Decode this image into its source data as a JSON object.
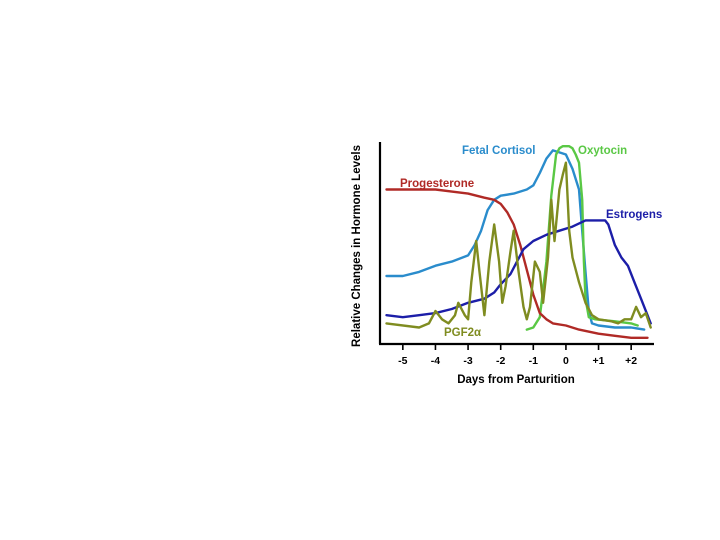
{
  "chart_data": {
    "type": "line",
    "title": "",
    "xlabel": "Days from Parturition",
    "ylabel": "Relative Changes in Hormone Levels",
    "xlim": [
      -5.7,
      2.7
    ],
    "ylim": [
      0,
      100
    ],
    "x_ticks": [
      {
        "value": -5,
        "label": "-5"
      },
      {
        "value": -4,
        "label": "-4"
      },
      {
        "value": -3,
        "label": "-3"
      },
      {
        "value": -2,
        "label": "-2"
      },
      {
        "value": -1,
        "label": "-1"
      },
      {
        "value": 0,
        "label": "0"
      },
      {
        "value": 1,
        "label": "+1"
      },
      {
        "value": 2,
        "label": "+2"
      }
    ],
    "grid": false,
    "series": [
      {
        "name": "Fetal Cortisol",
        "color": "#2a8ccc",
        "points": [
          [
            -5.5,
            33
          ],
          [
            -5.0,
            33
          ],
          [
            -4.5,
            35
          ],
          [
            -4.0,
            38
          ],
          [
            -3.5,
            40
          ],
          [
            -3.0,
            43
          ],
          [
            -2.8,
            48
          ],
          [
            -2.6,
            55
          ],
          [
            -2.4,
            65
          ],
          [
            -2.2,
            70
          ],
          [
            -2.0,
            72
          ],
          [
            -1.6,
            73
          ],
          [
            -1.2,
            75
          ],
          [
            -1.0,
            77
          ],
          [
            -0.8,
            83
          ],
          [
            -0.6,
            90
          ],
          [
            -0.4,
            94
          ],
          [
            -0.2,
            93
          ],
          [
            0.0,
            92
          ],
          [
            0.2,
            85
          ],
          [
            0.4,
            75
          ],
          [
            0.5,
            55
          ],
          [
            0.6,
            35
          ],
          [
            0.7,
            16
          ],
          [
            0.8,
            10
          ],
          [
            1.0,
            9
          ],
          [
            1.5,
            8
          ],
          [
            2.0,
            8
          ],
          [
            2.4,
            7
          ]
        ]
      },
      {
        "name": "Oxytocin",
        "color": "#5ac845",
        "points": [
          [
            -1.2,
            7
          ],
          [
            -1.0,
            8
          ],
          [
            -0.8,
            13
          ],
          [
            -0.6,
            40
          ],
          [
            -0.45,
            72
          ],
          [
            -0.3,
            92
          ],
          [
            -0.2,
            95
          ],
          [
            -0.1,
            96
          ],
          [
            0.0,
            96
          ],
          [
            0.1,
            96
          ],
          [
            0.2,
            95
          ],
          [
            0.3,
            92
          ],
          [
            0.4,
            88
          ],
          [
            0.5,
            70
          ],
          [
            0.55,
            40
          ],
          [
            0.6,
            22
          ],
          [
            0.7,
            13
          ],
          [
            0.9,
            12
          ],
          [
            1.5,
            11
          ],
          [
            2.0,
            10
          ],
          [
            2.2,
            9
          ]
        ]
      },
      {
        "name": "Progesterone",
        "color": "#b02a26",
        "points": [
          [
            -5.5,
            75
          ],
          [
            -5.0,
            75
          ],
          [
            -4.0,
            75
          ],
          [
            -3.5,
            74
          ],
          [
            -3.0,
            73
          ],
          [
            -2.5,
            71
          ],
          [
            -2.2,
            70
          ],
          [
            -2.0,
            68
          ],
          [
            -1.8,
            64
          ],
          [
            -1.6,
            58
          ],
          [
            -1.4,
            48
          ],
          [
            -1.2,
            36
          ],
          [
            -1.0,
            24
          ],
          [
            -0.8,
            15
          ],
          [
            -0.6,
            12
          ],
          [
            -0.4,
            10
          ],
          [
            0.0,
            9
          ],
          [
            0.4,
            7
          ],
          [
            1.0,
            5
          ],
          [
            1.5,
            4
          ],
          [
            2.0,
            3
          ],
          [
            2.5,
            3
          ]
        ]
      },
      {
        "name": "Estrogens",
        "color": "#1c1ea8",
        "points": [
          [
            -5.5,
            14
          ],
          [
            -5.0,
            13
          ],
          [
            -4.5,
            14
          ],
          [
            -4.0,
            15
          ],
          [
            -3.5,
            17
          ],
          [
            -3.0,
            20
          ],
          [
            -2.5,
            22
          ],
          [
            -2.2,
            25
          ],
          [
            -2.0,
            29
          ],
          [
            -1.7,
            34
          ],
          [
            -1.5,
            40
          ],
          [
            -1.3,
            46
          ],
          [
            -1.0,
            50
          ],
          [
            -0.6,
            53
          ],
          [
            -0.2,
            55
          ],
          [
            0.2,
            57
          ],
          [
            0.6,
            60
          ],
          [
            0.9,
            60
          ],
          [
            1.2,
            60
          ],
          [
            1.3,
            58
          ],
          [
            1.5,
            48
          ],
          [
            1.7,
            42
          ],
          [
            1.9,
            38
          ],
          [
            2.1,
            30
          ],
          [
            2.3,
            22
          ],
          [
            2.5,
            14
          ],
          [
            2.6,
            10
          ]
        ]
      },
      {
        "name": "PGF2α",
        "color": "#7f8c20",
        "points": [
          [
            -5.5,
            10
          ],
          [
            -4.5,
            8
          ],
          [
            -4.2,
            10
          ],
          [
            -4.0,
            16
          ],
          [
            -3.8,
            12
          ],
          [
            -3.6,
            10
          ],
          [
            -3.4,
            14
          ],
          [
            -3.3,
            20
          ],
          [
            -3.1,
            14
          ],
          [
            -3.0,
            12
          ],
          [
            -2.9,
            30
          ],
          [
            -2.75,
            50
          ],
          [
            -2.65,
            35
          ],
          [
            -2.5,
            14
          ],
          [
            -2.35,
            40
          ],
          [
            -2.2,
            58
          ],
          [
            -2.05,
            40
          ],
          [
            -1.95,
            20
          ],
          [
            -1.85,
            28
          ],
          [
            -1.7,
            45
          ],
          [
            -1.6,
            55
          ],
          [
            -1.45,
            35
          ],
          [
            -1.3,
            18
          ],
          [
            -1.2,
            12
          ],
          [
            -1.1,
            18
          ],
          [
            -0.95,
            40
          ],
          [
            -0.8,
            35
          ],
          [
            -0.7,
            20
          ],
          [
            -0.55,
            42
          ],
          [
            -0.45,
            70
          ],
          [
            -0.35,
            50
          ],
          [
            -0.2,
            75
          ],
          [
            -0.1,
            82
          ],
          [
            0.0,
            88
          ],
          [
            0.1,
            55
          ],
          [
            0.2,
            42
          ],
          [
            0.4,
            30
          ],
          [
            0.6,
            20
          ],
          [
            0.8,
            14
          ],
          [
            1.0,
            12
          ],
          [
            1.4,
            11
          ],
          [
            1.6,
            10
          ],
          [
            1.8,
            12
          ],
          [
            2.0,
            12
          ],
          [
            2.15,
            18
          ],
          [
            2.3,
            13
          ],
          [
            2.45,
            15
          ],
          [
            2.6,
            8
          ]
        ]
      }
    ],
    "annotations": [
      {
        "text": "Fetal Cortisol",
        "series": "Fetal Cortisol"
      },
      {
        "text": "Oxytocin",
        "series": "Oxytocin"
      },
      {
        "text": "Progesterone",
        "series": "Progesterone"
      },
      {
        "text": "Estrogens",
        "series": "Estrogens"
      },
      {
        "text": "PGF2α",
        "series": "PGF2α"
      }
    ],
    "colors": {
      "axis": "#000000",
      "panel": "#ffffff"
    }
  }
}
